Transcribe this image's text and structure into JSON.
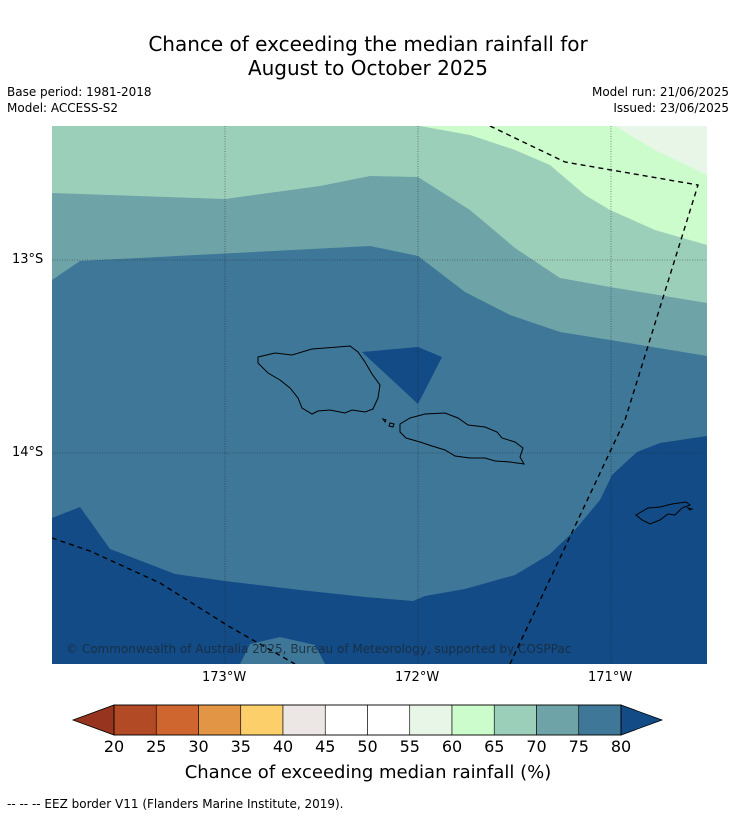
{
  "title_line1": "Chance of exceeding the median rainfall for",
  "title_line2": "August to October 2025",
  "base_period": "Base period: 1981-2018",
  "model": "Model: ACCESS-S2",
  "model_run": "Model run: 21/06/2025",
  "issued": "Issued: 23/06/2025",
  "lat_labels": [
    "13°S",
    "14°S"
  ],
  "lon_labels": [
    "173°W",
    "172°W",
    "171°W"
  ],
  "copyright": "© Commonwealth of Australia 2025, Bureau of Meteorology, supported by COSPPac",
  "colorbar": {
    "ticks": [
      "20",
      "25",
      "30",
      "35",
      "40",
      "45",
      "50",
      "55",
      "60",
      "65",
      "70",
      "75",
      "80"
    ],
    "title": "Chance of exceeding median rainfall (%)",
    "colors": [
      "#b34a26",
      "#d0662f",
      "#e29545",
      "#fdcf6b",
      "#ece7e4",
      "#ffffff",
      "#ffffff",
      "#e8f6e8",
      "#ccfccb",
      "#9ccfb9",
      "#6ea3a7",
      "#3e7798"
    ],
    "under_color": "#963420",
    "over_color": "#134b86"
  },
  "footnote": "--  --  -- EEZ border V11 (Flanders Marine Institute, 2019).",
  "map_colors": {
    "c60_65": "#ccfccb",
    "c55_60": "#e8f6e8",
    "c65_70": "#9ccfb9",
    "c70_75": "#6ea3a7",
    "c75_80": "#3e7798",
    "c80": "#134b86"
  }
}
